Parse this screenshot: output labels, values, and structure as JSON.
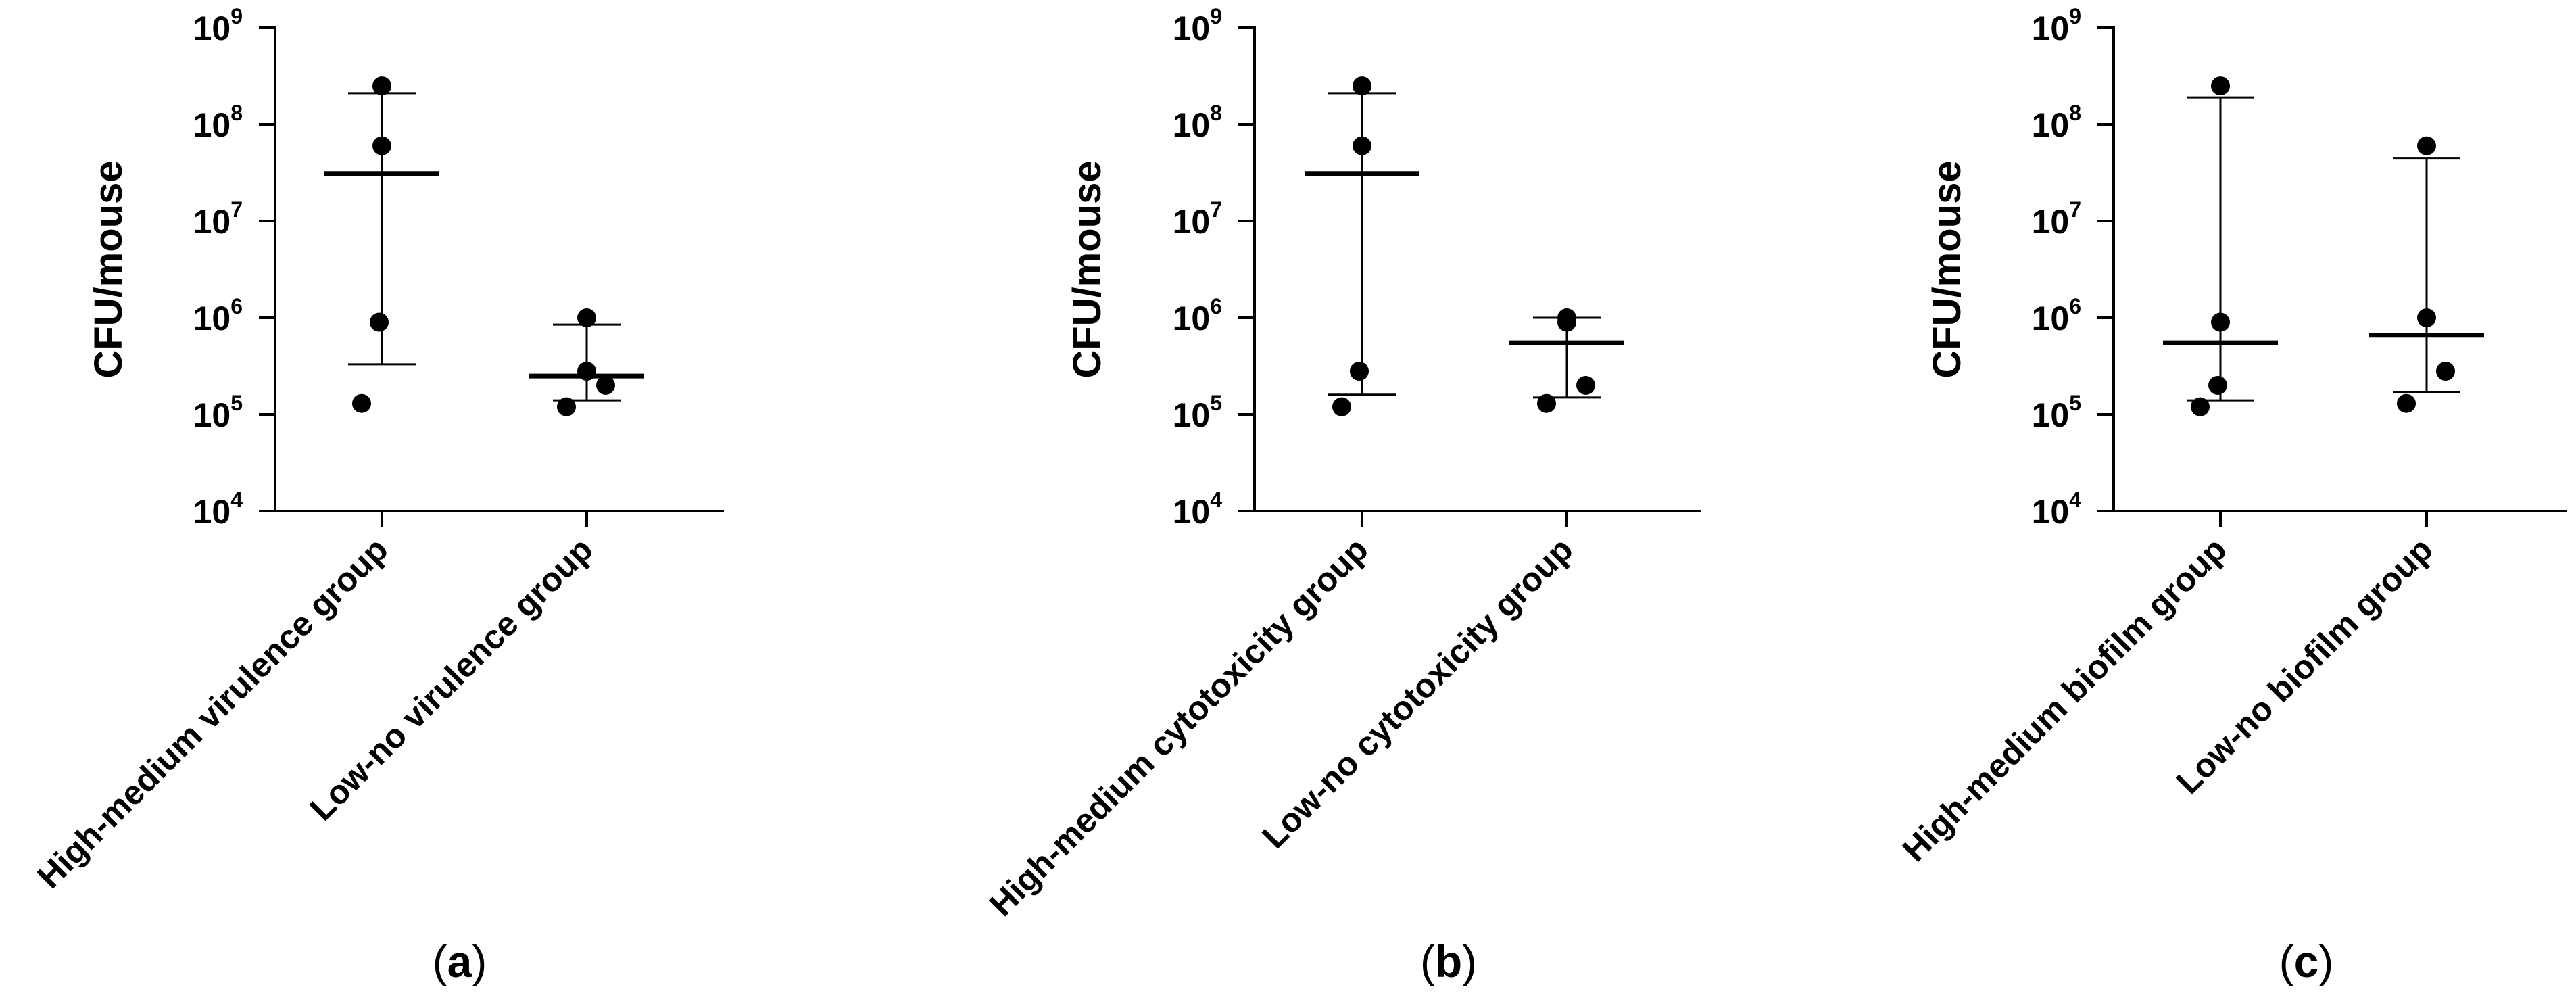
{
  "figure": {
    "panels": [
      {
        "label_open": "(",
        "label_letter": "a",
        "label_close": ")"
      },
      {
        "label_open": "(",
        "label_letter": "b",
        "label_close": ")"
      },
      {
        "label_open": "(",
        "label_letter": "c",
        "label_close": ")"
      }
    ]
  },
  "chart_data": [
    {
      "type": "scatter",
      "ylabel": "CFU/mouse",
      "yscale": "log",
      "ylim": [
        10000,
        1000000000
      ],
      "yticks": [
        {
          "base": "10",
          "exp": "4"
        },
        {
          "base": "10",
          "exp": "5"
        },
        {
          "base": "10",
          "exp": "6"
        },
        {
          "base": "10",
          "exp": "7"
        },
        {
          "base": "10",
          "exp": "8"
        },
        {
          "base": "10",
          "exp": "9"
        }
      ],
      "categories": [
        "High-medium virulence group",
        "Low-no virulence group"
      ],
      "points": [
        [
          250000000,
          60000000,
          900000,
          130000
        ],
        [
          1000000,
          280000,
          200000,
          120000
        ]
      ],
      "median": [
        31000000,
        250000
      ],
      "range_whiskers": [
        [
          330000,
          210000000
        ],
        [
          140000,
          850000
        ]
      ],
      "grid": false
    },
    {
      "type": "scatter",
      "ylabel": "CFU/mouse",
      "yscale": "log",
      "ylim": [
        10000,
        1000000000
      ],
      "yticks": [
        {
          "base": "10",
          "exp": "4"
        },
        {
          "base": "10",
          "exp": "5"
        },
        {
          "base": "10",
          "exp": "6"
        },
        {
          "base": "10",
          "exp": "7"
        },
        {
          "base": "10",
          "exp": "8"
        },
        {
          "base": "10",
          "exp": "9"
        }
      ],
      "categories": [
        "High-medium cytotoxicity group",
        "Low-no cytotoxicity group"
      ],
      "points": [
        [
          250000000,
          60000000,
          280000,
          120000
        ],
        [
          1000000,
          900000,
          200000,
          130000
        ]
      ],
      "median": [
        31000000,
        550000
      ],
      "range_whiskers": [
        [
          160000,
          210000000
        ],
        [
          150000,
          1000000
        ]
      ],
      "grid": false
    },
    {
      "type": "scatter",
      "ylabel": "CFU/mouse",
      "yscale": "log",
      "ylim": [
        10000,
        1000000000
      ],
      "yticks": [
        {
          "base": "10",
          "exp": "4"
        },
        {
          "base": "10",
          "exp": "5"
        },
        {
          "base": "10",
          "exp": "6"
        },
        {
          "base": "10",
          "exp": "7"
        },
        {
          "base": "10",
          "exp": "8"
        },
        {
          "base": "10",
          "exp": "9"
        }
      ],
      "categories": [
        "High-medium biofilm group",
        "Low-no biofilm group"
      ],
      "points": [
        [
          250000000,
          900000,
          200000,
          120000
        ],
        [
          60000000,
          1000000,
          280000,
          130000
        ]
      ],
      "median": [
        550000,
        660000
      ],
      "range_whiskers": [
        [
          140000,
          190000000
        ],
        [
          170000,
          45000000
        ]
      ],
      "grid": false
    }
  ]
}
